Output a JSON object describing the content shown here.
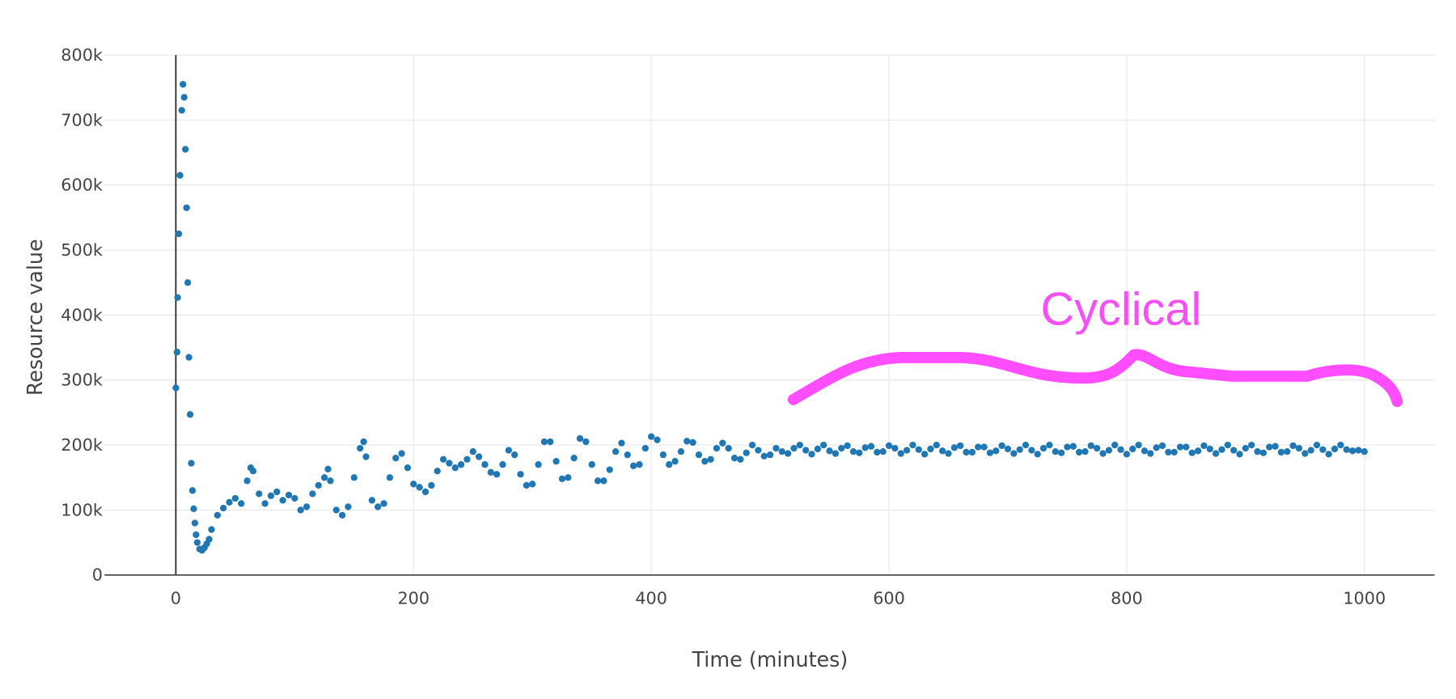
{
  "chart_data": {
    "type": "scatter",
    "xlabel": "Time (minutes)",
    "ylabel": "Resource value",
    "annotation": "Cyclical",
    "color": "#1f77b4",
    "grid": true,
    "xlim": [
      -60,
      1059
    ],
    "ylim": [
      0,
      800000
    ],
    "xticks": [
      0,
      200,
      400,
      600,
      800,
      1000
    ],
    "yticks": [
      0,
      {
        "value": 100000,
        "label": "100k"
      },
      {
        "value": 200000,
        "label": "200k"
      },
      {
        "value": 300000,
        "label": "300k"
      },
      {
        "value": 400000,
        "label": "400k"
      },
      {
        "value": 500000,
        "label": "500k"
      },
      {
        "value": 600000,
        "label": "600k"
      },
      {
        "value": 700000,
        "label": "700k"
      },
      {
        "value": 800000,
        "label": "800k"
      }
    ],
    "x": [
      0,
      1,
      1.5,
      2.5,
      3.5,
      5,
      6,
      7,
      8,
      9,
      10,
      11,
      12,
      13,
      14,
      15,
      16,
      17,
      18,
      20,
      22,
      24,
      26,
      28,
      30,
      35,
      40,
      45,
      50,
      55,
      60,
      63,
      65,
      70,
      75,
      80,
      85,
      90,
      95,
      100,
      105,
      110,
      115,
      120,
      125,
      128,
      130,
      135,
      140,
      145,
      150,
      155,
      158,
      160,
      165,
      170,
      175,
      180,
      185,
      190,
      195,
      200,
      205,
      210,
      215,
      220,
      225,
      230,
      235,
      240,
      245,
      250,
      255,
      260,
      265,
      270,
      275,
      280,
      285,
      290,
      295,
      300,
      305,
      310,
      315,
      320,
      325,
      330,
      335,
      340,
      345,
      350,
      355,
      360,
      365,
      370,
      375,
      380,
      385,
      390,
      395,
      400,
      405,
      410,
      415,
      420,
      425,
      430,
      435,
      440,
      445,
      450,
      455,
      460,
      465,
      470,
      475,
      480,
      485,
      490,
      495,
      500,
      505,
      510,
      515,
      520,
      525,
      530,
      535,
      540,
      545,
      550,
      555,
      560,
      565,
      570,
      575,
      580,
      585,
      590,
      595,
      600,
      605,
      610,
      615,
      620,
      625,
      630,
      635,
      640,
      645,
      650,
      655,
      660,
      665,
      670,
      675,
      680,
      685,
      690,
      695,
      700,
      705,
      710,
      715,
      720,
      725,
      730,
      735,
      740,
      745,
      750,
      755,
      760,
      765,
      770,
      775,
      780,
      785,
      790,
      795,
      800,
      805,
      810,
      815,
      820,
      825,
      830,
      835,
      840,
      845,
      850,
      855,
      860,
      865,
      870,
      875,
      880,
      885,
      890,
      895,
      900,
      905,
      910,
      915,
      920,
      925,
      930,
      935,
      940,
      945,
      950,
      955,
      960,
      965,
      970,
      975,
      980,
      985,
      990,
      995,
      1000
    ],
    "values": [
      288000,
      343000,
      427000,
      525000,
      615000,
      715000,
      755000,
      735000,
      655000,
      565000,
      450000,
      335000,
      247000,
      172000,
      130000,
      102000,
      80000,
      62000,
      50000,
      40000,
      38000,
      42000,
      48000,
      55000,
      70000,
      92000,
      103000,
      112000,
      118000,
      110000,
      145000,
      165000,
      160000,
      125000,
      110000,
      122000,
      128000,
      115000,
      123000,
      118000,
      100000,
      105000,
      125000,
      138000,
      150000,
      163000,
      145000,
      100000,
      92000,
      105000,
      150000,
      195000,
      205000,
      182000,
      115000,
      105000,
      110000,
      150000,
      180000,
      187000,
      165000,
      140000,
      135000,
      128000,
      138000,
      160000,
      178000,
      172000,
      165000,
      170000,
      178000,
      190000,
      182000,
      170000,
      158000,
      155000,
      170000,
      192000,
      185000,
      155000,
      138000,
      140000,
      170000,
      205000,
      205000,
      175000,
      148000,
      150000,
      180000,
      210000,
      205000,
      170000,
      145000,
      145000,
      162000,
      190000,
      203000,
      185000,
      168000,
      170000,
      195000,
      213000,
      208000,
      185000,
      170000,
      175000,
      190000,
      206000,
      204000,
      185000,
      175000,
      178000,
      195000,
      203000,
      195000,
      180000,
      178000,
      188000,
      200000,
      192000,
      183000,
      185000,
      195000,
      190000,
      187000,
      195000,
      200000,
      192000,
      186000,
      194000,
      200000,
      191000,
      187000,
      195000,
      199000,
      190000,
      188000,
      196000,
      198000,
      189000,
      190000,
      199000,
      195000,
      187000,
      192000,
      200000,
      193000,
      186000,
      194000,
      200000,
      191000,
      187000,
      196000,
      199000,
      189000,
      189000,
      197000,
      197000,
      188000,
      191000,
      199000,
      194000,
      187000,
      193000,
      200000,
      192000,
      186000,
      195000,
      200000,
      190000,
      188000,
      197000,
      198000,
      189000,
      190000,
      199000,
      195000,
      187000,
      192000,
      200000,
      193000,
      186000,
      194000,
      200000,
      191000,
      187000,
      196000,
      199000,
      189000,
      189000,
      197000,
      197000,
      188000,
      191000,
      199000,
      194000,
      187000,
      193000,
      200000,
      192000,
      186000,
      195000,
      200000,
      190000,
      188000,
      197000,
      198000,
      189000,
      190000,
      199000,
      195000,
      187000,
      192000,
      200000,
      193000,
      186000,
      194000,
      200000,
      193000,
      191000,
      192000,
      190000
    ]
  }
}
